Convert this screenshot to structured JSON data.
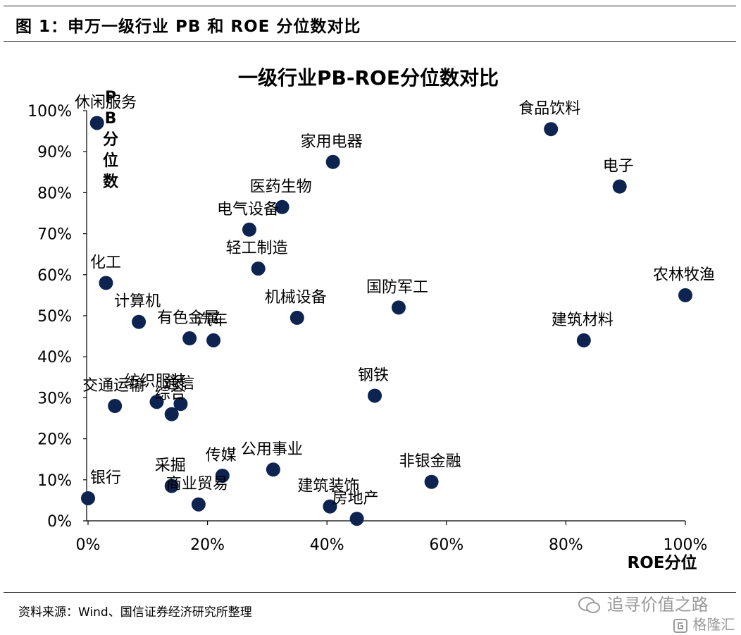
{
  "figure": {
    "title": "图 1：申万一级行业 PB 和 ROE 分位数对比",
    "source": "资料来源：Wind、国信证券经济研究所整理",
    "watermark_primary": "追寻价值之路",
    "watermark_secondary": "格隆汇"
  },
  "chart_data": {
    "type": "scatter",
    "title": "一级行业PB-ROE分位数对比",
    "xlabel": "ROE分位",
    "ylabel": "PB分位数",
    "xlim": [
      0,
      100
    ],
    "ylim": [
      0,
      100
    ],
    "x_ticks": [
      "0%",
      "20%",
      "40%",
      "60%",
      "80%",
      "100%"
    ],
    "y_ticks": [
      "0%",
      "10%",
      "20%",
      "30%",
      "40%",
      "50%",
      "60%",
      "70%",
      "80%",
      "90%",
      "100%"
    ],
    "grid": false,
    "legend": "none",
    "marker_color": "#0d2350",
    "points": [
      {
        "name": "休闲服务",
        "x": 1.5,
        "y": 97
      },
      {
        "name": "食品饮料",
        "x": 77.5,
        "y": 95.5
      },
      {
        "name": "家用电器",
        "x": 41,
        "y": 87.5
      },
      {
        "name": "电子",
        "x": 89,
        "y": 81.5
      },
      {
        "name": "医药生物",
        "x": 32.5,
        "y": 76.5
      },
      {
        "name": "电气设备",
        "x": 27,
        "y": 71
      },
      {
        "name": "轻工制造",
        "x": 28.5,
        "y": 61.5
      },
      {
        "name": "化工",
        "x": 3,
        "y": 58
      },
      {
        "name": "农林牧渔",
        "x": 100,
        "y": 55
      },
      {
        "name": "国防军工",
        "x": 52,
        "y": 52
      },
      {
        "name": "机械设备",
        "x": 35,
        "y": 49.5
      },
      {
        "name": "计算机",
        "x": 8.5,
        "y": 48.5
      },
      {
        "name": "有色金属",
        "x": 17,
        "y": 44.5
      },
      {
        "name": "汽车",
        "x": 21,
        "y": 44
      },
      {
        "name": "建筑材料",
        "x": 83,
        "y": 44
      },
      {
        "name": "钢铁",
        "x": 48,
        "y": 30.5
      },
      {
        "name": "交通运输",
        "x": 4.5,
        "y": 28
      },
      {
        "name": "纺织服装",
        "x": 11.5,
        "y": 29
      },
      {
        "name": "通信",
        "x": 15.5,
        "y": 28.5
      },
      {
        "name": "综合",
        "x": 14,
        "y": 26
      },
      {
        "name": "公用事业",
        "x": 31,
        "y": 12.5
      },
      {
        "name": "传媒",
        "x": 22.5,
        "y": 11
      },
      {
        "name": "非银金融",
        "x": 57.5,
        "y": 9.5
      },
      {
        "name": "采掘",
        "x": 14,
        "y": 8.5
      },
      {
        "name": "银行",
        "x": 0,
        "y": 5.5
      },
      {
        "name": "商业贸易",
        "x": 18.5,
        "y": 4
      },
      {
        "name": "建筑装饰",
        "x": 40.5,
        "y": 3.5
      },
      {
        "name": "房地产",
        "x": 45,
        "y": 0.5
      }
    ]
  }
}
